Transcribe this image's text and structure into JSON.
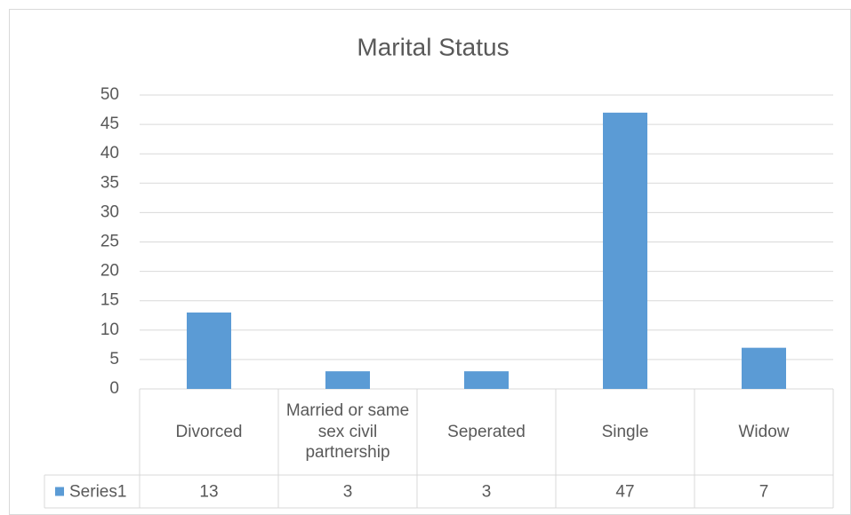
{
  "chart_data": {
    "type": "bar",
    "title": "Marital Status",
    "categories": [
      "Divorced",
      "Married or same sex civil partnership",
      "Seperated",
      "Single",
      "Widow"
    ],
    "series": [
      {
        "name": "Series1",
        "color": "#5b9bd5",
        "values": [
          13,
          3,
          3,
          47,
          7
        ]
      }
    ],
    "ylim": [
      0,
      50
    ],
    "yticks": [
      0,
      5,
      10,
      15,
      20,
      25,
      30,
      35,
      40,
      45,
      50
    ],
    "grid": true
  }
}
